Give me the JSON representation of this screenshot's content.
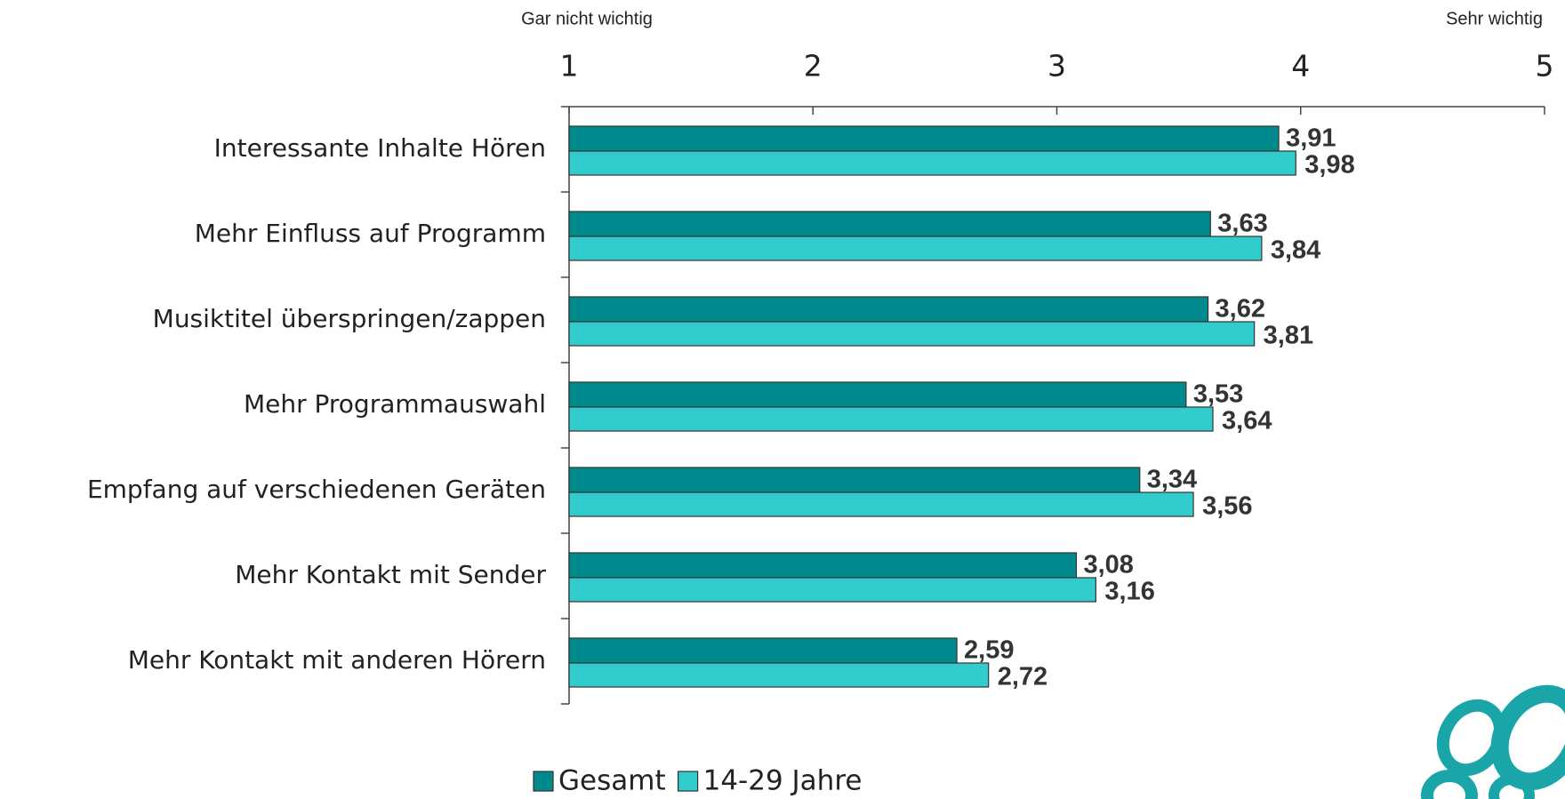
{
  "chart_data": {
    "type": "bar",
    "orientation": "horizontal",
    "annotations": [
      "Gar nicht wichtig",
      "Sehr wichtig"
    ],
    "categories": [
      "Interessante Inhalte Hören",
      "Mehr Einfluss auf Programm",
      "Musiktitel überspringen/zappen",
      "Mehr Programmauswahl",
      "Empfang auf verschiedenen Geräten",
      "Mehr Kontakt mit Sender",
      "Mehr Kontakt mit anderen Hörern"
    ],
    "series": [
      {
        "name": "Gesamt",
        "color": "#008a8e",
        "values": [
          3.91,
          3.63,
          3.62,
          3.53,
          3.34,
          3.08,
          2.59
        ],
        "value_labels": [
          "3,91",
          "3,63",
          "3,62",
          "3,53",
          "3,34",
          "3,08",
          "2,59"
        ]
      },
      {
        "name": "14-29 Jahre",
        "color": "#33cccc",
        "values": [
          3.98,
          3.84,
          3.81,
          3.64,
          3.56,
          3.16,
          2.72
        ],
        "value_labels": [
          "3,98",
          "3,84",
          "3,81",
          "3,64",
          "3,56",
          "3,16",
          "2,72"
        ]
      }
    ],
    "xlim": [
      1,
      5
    ],
    "xticks": [
      1,
      2,
      3,
      4,
      5
    ],
    "legend": "bottom"
  }
}
